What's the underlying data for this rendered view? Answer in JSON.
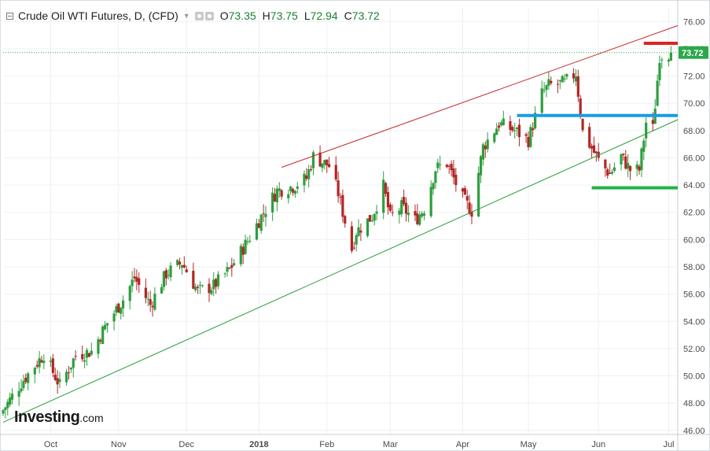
{
  "header": {
    "title": "Crude Oil WTI Futures, D, (CFD)",
    "ohlc": [
      {
        "label": "O",
        "value": "73.35"
      },
      {
        "label": "H",
        "value": "73.75"
      },
      {
        "label": "L",
        "value": "72.94"
      },
      {
        "label": "C",
        "value": "73.72"
      }
    ]
  },
  "logo": {
    "name": "Investing",
    "suffix": ".com"
  },
  "colors": {
    "up": "#2e9e3e",
    "down": "#b32626",
    "upper_channel": "#c42a2a",
    "lower_channel": "#2a9d3a",
    "resistance": "#e02323",
    "pivot": "#1a9be6",
    "support": "#22b04a",
    "last_price_bg": "#2ba84a"
  },
  "chart_data": {
    "type": "candlestick",
    "y_axis": {
      "range": [
        45.7,
        77.0
      ],
      "ticks": [
        "46.00",
        "48.00",
        "50.00",
        "52.00",
        "54.00",
        "56.00",
        "58.00",
        "60.00",
        "62.00",
        "64.00",
        "66.00",
        "68.00",
        "70.00",
        "72.00",
        "74.00",
        "76.00"
      ],
      "tick_values": [
        46,
        48,
        50,
        52,
        54,
        56,
        58,
        60,
        62,
        64,
        66,
        68,
        70,
        72,
        74,
        76
      ]
    },
    "x_axis": {
      "range": [
        "2017-09-11",
        "2018-07-06"
      ],
      "labels": [
        {
          "text": "Oct",
          "date": "2017-10-02"
        },
        {
          "text": "Nov",
          "date": "2017-11-01"
        },
        {
          "text": "Dec",
          "date": "2017-12-01"
        },
        {
          "text": "2018",
          "date": "2018-01-02",
          "bold": true
        },
        {
          "text": "Feb",
          "date": "2018-02-01"
        },
        {
          "text": "Mar",
          "date": "2018-03-01"
        },
        {
          "text": "Apr",
          "date": "2018-04-02"
        },
        {
          "text": "May",
          "date": "2018-05-01"
        },
        {
          "text": "Jun",
          "date": "2018-06-01"
        },
        {
          "text": "Jul",
          "date": "2018-07-02"
        }
      ]
    },
    "last_price": {
      "value": 73.72,
      "label": "73.72"
    },
    "close_path": [
      [
        "2017-09-11",
        47.5
      ],
      [
        "2017-09-19",
        49.5
      ],
      [
        "2017-09-29",
        51.6
      ],
      [
        "2017-10-06",
        49.3
      ],
      [
        "2017-10-13",
        51.5
      ],
      [
        "2017-10-20",
        51.8
      ],
      [
        "2017-10-27",
        53.9
      ],
      [
        "2017-11-03",
        55.6
      ],
      [
        "2017-11-08",
        57.2
      ],
      [
        "2017-11-15",
        55.2
      ],
      [
        "2017-11-22",
        57.5
      ],
      [
        "2017-11-29",
        58.3
      ],
      [
        "2017-12-06",
        56.2
      ],
      [
        "2017-12-13",
        56.6
      ],
      [
        "2017-12-20",
        57.8
      ],
      [
        "2017-12-28",
        59.9
      ],
      [
        "2018-01-03",
        61.7
      ],
      [
        "2018-01-10",
        63.6
      ],
      [
        "2018-01-17",
        63.9
      ],
      [
        "2018-01-23",
        64.5
      ],
      [
        "2018-01-26",
        66.1
      ],
      [
        "2018-02-02",
        65.4
      ],
      [
        "2018-02-06",
        63.4
      ],
      [
        "2018-02-12",
        59.3
      ],
      [
        "2018-02-14",
        60.6
      ],
      [
        "2018-02-21",
        61.7
      ],
      [
        "2018-02-26",
        63.9
      ],
      [
        "2018-03-01",
        61.6
      ],
      [
        "2018-03-06",
        62.4
      ],
      [
        "2018-03-12",
        61.4
      ],
      [
        "2018-03-16",
        62.3
      ],
      [
        "2018-03-21",
        65.2
      ],
      [
        "2018-03-26",
        65.6
      ],
      [
        "2018-04-02",
        63.0
      ],
      [
        "2018-04-06",
        62.1
      ],
      [
        "2018-04-11",
        66.8
      ],
      [
        "2018-04-18",
        68.5
      ],
      [
        "2018-04-25",
        68.0
      ],
      [
        "2018-05-01",
        67.3
      ],
      [
        "2018-05-07",
        70.7
      ],
      [
        "2018-05-10",
        71.3
      ],
      [
        "2018-05-17",
        71.5
      ],
      [
        "2018-05-22",
        72.2
      ],
      [
        "2018-05-25",
        67.9
      ],
      [
        "2018-05-29",
        66.7
      ],
      [
        "2018-06-01",
        65.8
      ],
      [
        "2018-06-06",
        64.8
      ],
      [
        "2018-06-11",
        66.1
      ],
      [
        "2018-06-15",
        65.1
      ],
      [
        "2018-06-19",
        65.1
      ],
      [
        "2018-06-22",
        68.6
      ],
      [
        "2018-06-25",
        68.1
      ],
      [
        "2018-06-28",
        73.5
      ],
      [
        "2018-07-03",
        73.72
      ]
    ],
    "annotations": [
      {
        "name": "upper-channel-line",
        "from": [
          "2018-01-12",
          65.3
        ],
        "to": [
          "2018-07-06",
          75.7
        ]
      },
      {
        "name": "lower-channel-line",
        "from": [
          "2017-09-11",
          46.6
        ],
        "to": [
          "2018-07-06",
          68.8
        ]
      },
      {
        "name": "resistance-line",
        "from": [
          "2018-06-21",
          74.4
        ],
        "to": [
          "2018-07-06",
          74.4
        ]
      },
      {
        "name": "pivot-line",
        "from": [
          "2018-04-26",
          69.1
        ],
        "to": [
          "2018-07-06",
          69.1
        ]
      },
      {
        "name": "support-line",
        "from": [
          "2018-05-29",
          63.8
        ],
        "to": [
          "2018-07-06",
          63.8
        ]
      }
    ],
    "grid": true
  }
}
